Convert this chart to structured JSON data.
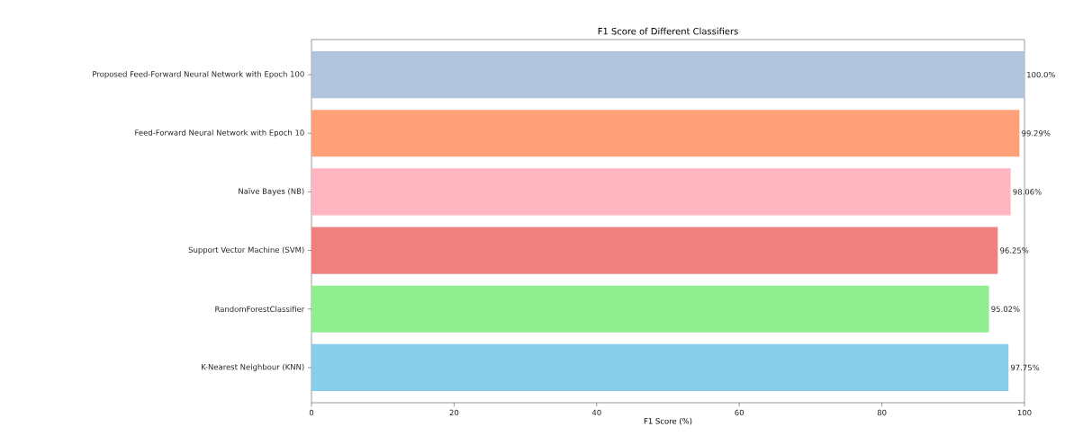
{
  "chart_data": {
    "type": "bar",
    "orientation": "horizontal",
    "title": "F1 Score of Different Classifiers",
    "xlabel": "F1 Score (%)",
    "categories": [
      "Proposed Feed-Forward Neural Network with Epoch 100",
      "Feed-Forward Neural Network with Epoch 10",
      "Naïve Bayes (NB)",
      "Support Vector Machine (SVM)",
      "RandomForestClassifier",
      "K-Nearest Neighbour (KNN)"
    ],
    "values": [
      100.0,
      99.29,
      98.06,
      96.25,
      95.02,
      97.75
    ],
    "value_labels": [
      "100.0%",
      "99.29%",
      "98.06%",
      "96.25%",
      "95.02%",
      "97.75%"
    ],
    "colors": [
      "#b0c4de",
      "#ffa07a",
      "#ffb6c1",
      "#f08080",
      "#90ee90",
      "#87ceeb"
    ],
    "xlim": [
      0,
      100
    ],
    "xticks": [
      0,
      20,
      40,
      60,
      80,
      100
    ]
  }
}
